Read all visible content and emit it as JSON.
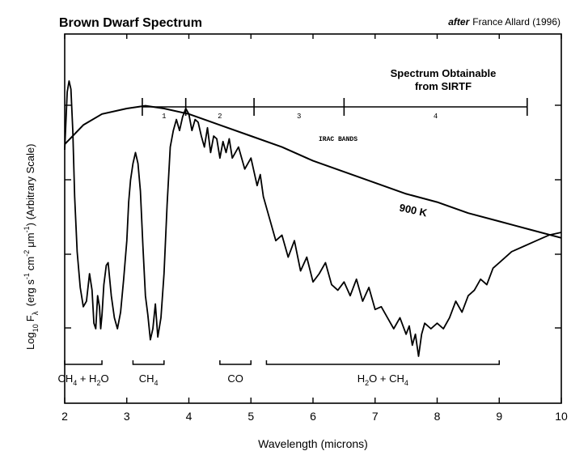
{
  "title": "Brown Dwarf Spectrum",
  "credit_italic": "after",
  "credit_rest": "France Allard (1996)",
  "xlabel": "Wavelength (microns)",
  "ylabel_prefix": "Log",
  "ylabel_log_sub": "10",
  "ylabel_F": "F",
  "ylabel_lambda_sub": "λ",
  "ylabel_units_a": "(erg s",
  "ylabel_units_b": "cm",
  "ylabel_units_c": "μm",
  "ylabel_units_d": ") (Arbitrary Scale)",
  "ylabel_exp_neg1": "-1",
  "ylabel_exp_neg2": "-2",
  "sirtf_label_line1": "Spectrum Obtainable",
  "sirtf_label_line2": "from SIRTF",
  "irac_label": "IRAC BANDS",
  "blackbody_label": "900 K",
  "irac_bands": [
    {
      "label": "1",
      "from": 3.25,
      "to": 3.95
    },
    {
      "label": "2",
      "from": 3.95,
      "to": 5.05
    },
    {
      "label": "3",
      "from": 5.05,
      "to": 6.5
    },
    {
      "label": "4",
      "from": 6.5,
      "to": 9.45
    }
  ],
  "absorption_bands": [
    {
      "from": 2.0,
      "to": 2.6,
      "label_parts": [
        "CH",
        "4",
        " + H",
        "2",
        "O"
      ]
    },
    {
      "from": 3.1,
      "to": 3.6,
      "label_parts": [
        "CH",
        "4"
      ]
    },
    {
      "from": 4.5,
      "to": 5.0,
      "label_parts": [
        "CO"
      ]
    },
    {
      "from": 5.25,
      "to": 9.0,
      "label_parts": [
        "H",
        "2",
        "O + CH",
        "4"
      ]
    }
  ],
  "chart_data": {
    "type": "line",
    "title": "Brown Dwarf Spectrum",
    "xlabel": "Wavelength (microns)",
    "ylabel": "Log10 Fλ (erg s-1 cm-2 μm-1) (Arbitrary Scale)",
    "xlim": [
      2,
      10
    ],
    "x_ticks": [
      2,
      3,
      4,
      5,
      6,
      7,
      8,
      9,
      10
    ],
    "ylim": [
      0,
      1
    ],
    "series": [
      {
        "x": [
          2.0,
          2.04,
          2.07,
          2.1,
          2.13,
          2.16,
          2.2,
          2.25,
          2.3,
          2.35,
          2.4,
          2.44,
          2.47,
          2.5,
          2.53,
          2.56,
          2.58,
          2.6,
          2.63,
          2.67,
          2.7,
          2.75,
          2.8,
          2.85,
          2.9,
          2.95,
          3.0,
          3.03,
          3.06,
          3.1,
          3.14,
          3.18,
          3.22,
          3.26,
          3.3,
          3.34,
          3.38,
          3.42,
          3.46,
          3.5,
          3.55,
          3.6,
          3.65,
          3.7,
          3.75,
          3.8,
          3.85,
          3.9,
          3.95,
          4.0,
          4.05,
          4.1,
          4.15,
          4.2,
          4.25,
          4.3,
          4.35,
          4.4,
          4.45,
          4.5,
          4.55,
          4.6,
          4.65,
          4.7,
          4.8,
          4.9,
          5.0,
          5.1,
          5.15,
          5.2,
          5.3,
          5.4,
          5.5,
          5.6,
          5.7,
          5.8,
          5.9,
          6.0,
          6.1,
          6.2,
          6.3,
          6.4,
          6.5,
          6.6,
          6.7,
          6.8,
          6.9,
          7.0,
          7.1,
          7.2,
          7.3,
          7.4,
          7.5,
          7.55,
          7.6,
          7.65,
          7.7,
          7.75,
          7.8,
          7.9,
          8.0,
          8.1,
          8.2,
          8.3,
          8.4,
          8.5,
          8.6,
          8.7,
          8.8,
          8.9,
          9.0,
          9.2,
          9.4,
          9.6,
          9.8,
          10.0
        ],
        "y": [
          0.75,
          0.96,
          1.0,
          0.97,
          0.82,
          0.58,
          0.38,
          0.25,
          0.18,
          0.2,
          0.3,
          0.24,
          0.12,
          0.1,
          0.22,
          0.18,
          0.1,
          0.15,
          0.26,
          0.33,
          0.34,
          0.22,
          0.14,
          0.1,
          0.16,
          0.28,
          0.42,
          0.56,
          0.64,
          0.7,
          0.74,
          0.7,
          0.6,
          0.4,
          0.22,
          0.15,
          0.06,
          0.1,
          0.19,
          0.07,
          0.14,
          0.3,
          0.55,
          0.76,
          0.82,
          0.86,
          0.82,
          0.87,
          0.9,
          0.88,
          0.82,
          0.86,
          0.85,
          0.8,
          0.76,
          0.83,
          0.74,
          0.8,
          0.79,
          0.72,
          0.78,
          0.74,
          0.79,
          0.72,
          0.76,
          0.68,
          0.72,
          0.62,
          0.66,
          0.58,
          0.5,
          0.42,
          0.44,
          0.36,
          0.42,
          0.31,
          0.36,
          0.27,
          0.3,
          0.34,
          0.26,
          0.24,
          0.27,
          0.22,
          0.28,
          0.2,
          0.25,
          0.17,
          0.18,
          0.14,
          0.1,
          0.14,
          0.08,
          0.11,
          0.04,
          0.08,
          0.0,
          0.08,
          0.12,
          0.1,
          0.12,
          0.1,
          0.14,
          0.2,
          0.16,
          0.22,
          0.24,
          0.28,
          0.26,
          0.32,
          0.34,
          0.38,
          0.4,
          0.42,
          0.44,
          0.45
        ]
      },
      {
        "name": "900 K",
        "x": [
          2.0,
          2.3,
          2.6,
          3.0,
          3.3,
          3.6,
          4.0,
          4.5,
          5.0,
          5.5,
          6.0,
          6.5,
          7.0,
          7.5,
          8.0,
          8.5,
          9.0,
          9.5,
          10.0
        ],
        "y": [
          0.77,
          0.84,
          0.88,
          0.9,
          0.91,
          0.9,
          0.88,
          0.84,
          0.8,
          0.76,
          0.71,
          0.67,
          0.63,
          0.59,
          0.56,
          0.52,
          0.49,
          0.46,
          0.43
        ]
      }
    ]
  }
}
